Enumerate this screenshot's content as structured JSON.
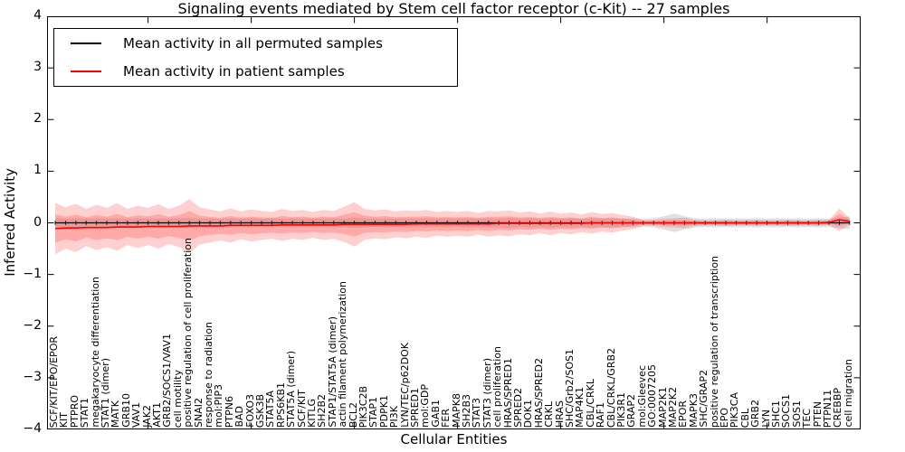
{
  "title": "Signaling events mediated by Stem cell factor receptor (c-Kit) -- 27 samples",
  "legend": {
    "items": [
      {
        "label": "Mean activity in all permuted samples",
        "color": "#000000"
      },
      {
        "label": "Mean activity in patient samples",
        "color": "#ff0000"
      }
    ]
  },
  "y_axis": {
    "title": "Inferred Activity",
    "ticks": [
      "4",
      "3",
      "2",
      "1",
      "0",
      "−1",
      "−2",
      "−3",
      "−4"
    ],
    "min": -4,
    "max": 4
  },
  "x_axis": {
    "title": "Cellular Entities"
  },
  "colors": {
    "permuted_line": "#000000",
    "patient_line": "#ff0000",
    "patient_band": "#ff3b3b",
    "permuted_band": "#aaaaaa"
  },
  "chart_data": {
    "type": "line",
    "title": "Signaling events mediated by Stem cell factor receptor (c-Kit) -- 27 samples",
    "xlabel": "Cellular Entities",
    "ylabel": "Inferred Activity",
    "ylim": [
      -4,
      4
    ],
    "legend_position": "upper left",
    "band_inner_ratio": 0.55,
    "categories": [
      "SCF/KIT/EPO/EPOR",
      "KIT",
      "PTPRO",
      "STAT1",
      "megakaryocyte differentiation",
      "STAT1 (dimer)",
      "MATK",
      "GRB10",
      "VAV1",
      "JAK2",
      "AKT1",
      "GRB2/SOCS1/VAV1",
      "cell motility",
      "positive regulation of cell proliferation",
      "SNAI2",
      "response to radiation",
      "mol:PIP3",
      "PTPN6",
      "BAD",
      "FOXO3",
      "GSK3B",
      "STAT5A",
      "RPS6KB1",
      "STAT5A (dimer)",
      "SCF/KIT",
      "KITLG",
      "SH2B2",
      "STAP1/STAT5A (dimer)",
      "actin filament polymerization",
      "BCL2",
      "PIK3C2B",
      "STAP1",
      "PDPK1",
      "PI3K",
      "LYN/TEC/p62DOK",
      "SPRED1",
      "mol:GDP",
      "GAB1",
      "FER",
      "MAPK8",
      "SH2B3",
      "STAT3",
      "STAT3 (dimer)",
      "cell proliferation",
      "HRAS/SPRED1",
      "SPRED2",
      "DOK1",
      "HRAS/SPRED2",
      "CRKL",
      "HRAS",
      "SHC/Grb2/SOS1",
      "MAP4K1",
      "CBL/CRKL",
      "RAF1",
      "CBL/CRKL/GRB2",
      "PIK3R1",
      "GRAP2",
      "mol:Gleevec",
      "GO:0007205",
      "MAP2K1",
      "MAP2K2",
      "EPOR",
      "MAPK3",
      "SHC/GRAP2",
      "positive regulation of transcription",
      "EPO",
      "PIK3CA",
      "CBL",
      "GRB2",
      "LYN",
      "SHC1",
      "SOCS1",
      "SOS1",
      "TEC",
      "PTEN",
      "PTPN11",
      "CREBBP",
      "cell migration"
    ],
    "series": [
      {
        "name": "Mean activity in all permuted samples",
        "color": "#000000",
        "values": [
          0,
          0,
          0,
          0,
          0,
          0,
          0,
          0,
          0,
          0,
          0,
          0,
          0,
          0,
          0,
          0,
          0,
          0,
          0,
          0,
          0,
          0,
          0,
          0,
          0,
          0,
          0,
          0,
          0,
          0,
          0,
          0,
          0,
          0,
          0,
          0,
          0,
          0,
          0,
          0,
          0,
          0,
          0,
          0,
          0,
          0,
          0,
          0,
          0,
          0,
          0,
          0,
          0,
          0,
          0,
          0,
          0,
          0,
          0,
          0,
          0,
          0,
          0,
          0,
          0,
          0,
          0,
          0,
          0,
          0,
          0,
          0,
          0,
          0,
          0,
          0,
          0,
          0
        ],
        "std": [
          0.09,
          0.08,
          0.09,
          0.08,
          0.09,
          0.08,
          0.09,
          0.08,
          0.09,
          0.08,
          0.09,
          0.08,
          0.09,
          0.1,
          0.08,
          0.09,
          0.08,
          0.09,
          0.08,
          0.09,
          0.08,
          0.09,
          0.08,
          0.09,
          0.08,
          0.09,
          0.08,
          0.09,
          0.08,
          0.1,
          0.09,
          0.08,
          0.09,
          0.08,
          0.09,
          0.08,
          0.09,
          0.08,
          0.09,
          0.08,
          0.09,
          0.08,
          0.09,
          0.08,
          0.1,
          0.08,
          0.09,
          0.08,
          0.09,
          0.08,
          0.09,
          0.08,
          0.09,
          0.08,
          0.09,
          0.08,
          0.09,
          0.08,
          0.09,
          0.13,
          0.18,
          0.13,
          0.09,
          0.08,
          0.09,
          0.08,
          0.09,
          0.08,
          0.09,
          0.08,
          0.09,
          0.08,
          0.09,
          0.08,
          0.09,
          0.08,
          0.1,
          0.13
        ]
      },
      {
        "name": "Mean activity in patient samples",
        "color": "#ff0000",
        "values": [
          -0.11,
          -0.1,
          -0.1,
          -0.09,
          -0.09,
          -0.09,
          -0.08,
          -0.08,
          -0.08,
          -0.07,
          -0.07,
          -0.07,
          -0.07,
          -0.06,
          -0.06,
          -0.06,
          -0.06,
          -0.05,
          -0.05,
          -0.05,
          -0.05,
          -0.05,
          -0.04,
          -0.04,
          -0.04,
          -0.04,
          -0.04,
          -0.04,
          -0.03,
          -0.03,
          -0.03,
          -0.03,
          -0.03,
          -0.03,
          -0.03,
          -0.02,
          -0.02,
          -0.02,
          -0.02,
          -0.02,
          -0.02,
          -0.02,
          -0.02,
          -0.01,
          -0.01,
          -0.01,
          -0.01,
          -0.01,
          -0.01,
          -0.01,
          -0.01,
          -0.01,
          0,
          0,
          0,
          0,
          0,
          0,
          0,
          0,
          0,
          0,
          0,
          0,
          0,
          0,
          0,
          0,
          0,
          0,
          0,
          0,
          0,
          0,
          0,
          0.01,
          0.06,
          0.03
        ],
        "std": [
          0.5,
          0.4,
          0.47,
          0.36,
          0.44,
          0.38,
          0.46,
          0.35,
          0.41,
          0.36,
          0.43,
          0.34,
          0.4,
          0.52,
          0.36,
          0.32,
          0.28,
          0.33,
          0.27,
          0.31,
          0.28,
          0.26,
          0.31,
          0.27,
          0.29,
          0.25,
          0.29,
          0.27,
          0.34,
          0.43,
          0.3,
          0.27,
          0.29,
          0.25,
          0.27,
          0.25,
          0.27,
          0.23,
          0.25,
          0.23,
          0.25,
          0.21,
          0.25,
          0.23,
          0.25,
          0.21,
          0.23,
          0.19,
          0.23,
          0.19,
          0.21,
          0.17,
          0.21,
          0.17,
          0.19,
          0.15,
          0.12,
          0.05,
          0.06,
          0.08,
          0.09,
          0.1,
          0.06,
          0.05,
          0.05,
          0.06,
          0.05,
          0.05,
          0.06,
          0.05,
          0.05,
          0.06,
          0.05,
          0.05,
          0.06,
          0.05,
          0.22,
          0.06
        ]
      }
    ]
  }
}
